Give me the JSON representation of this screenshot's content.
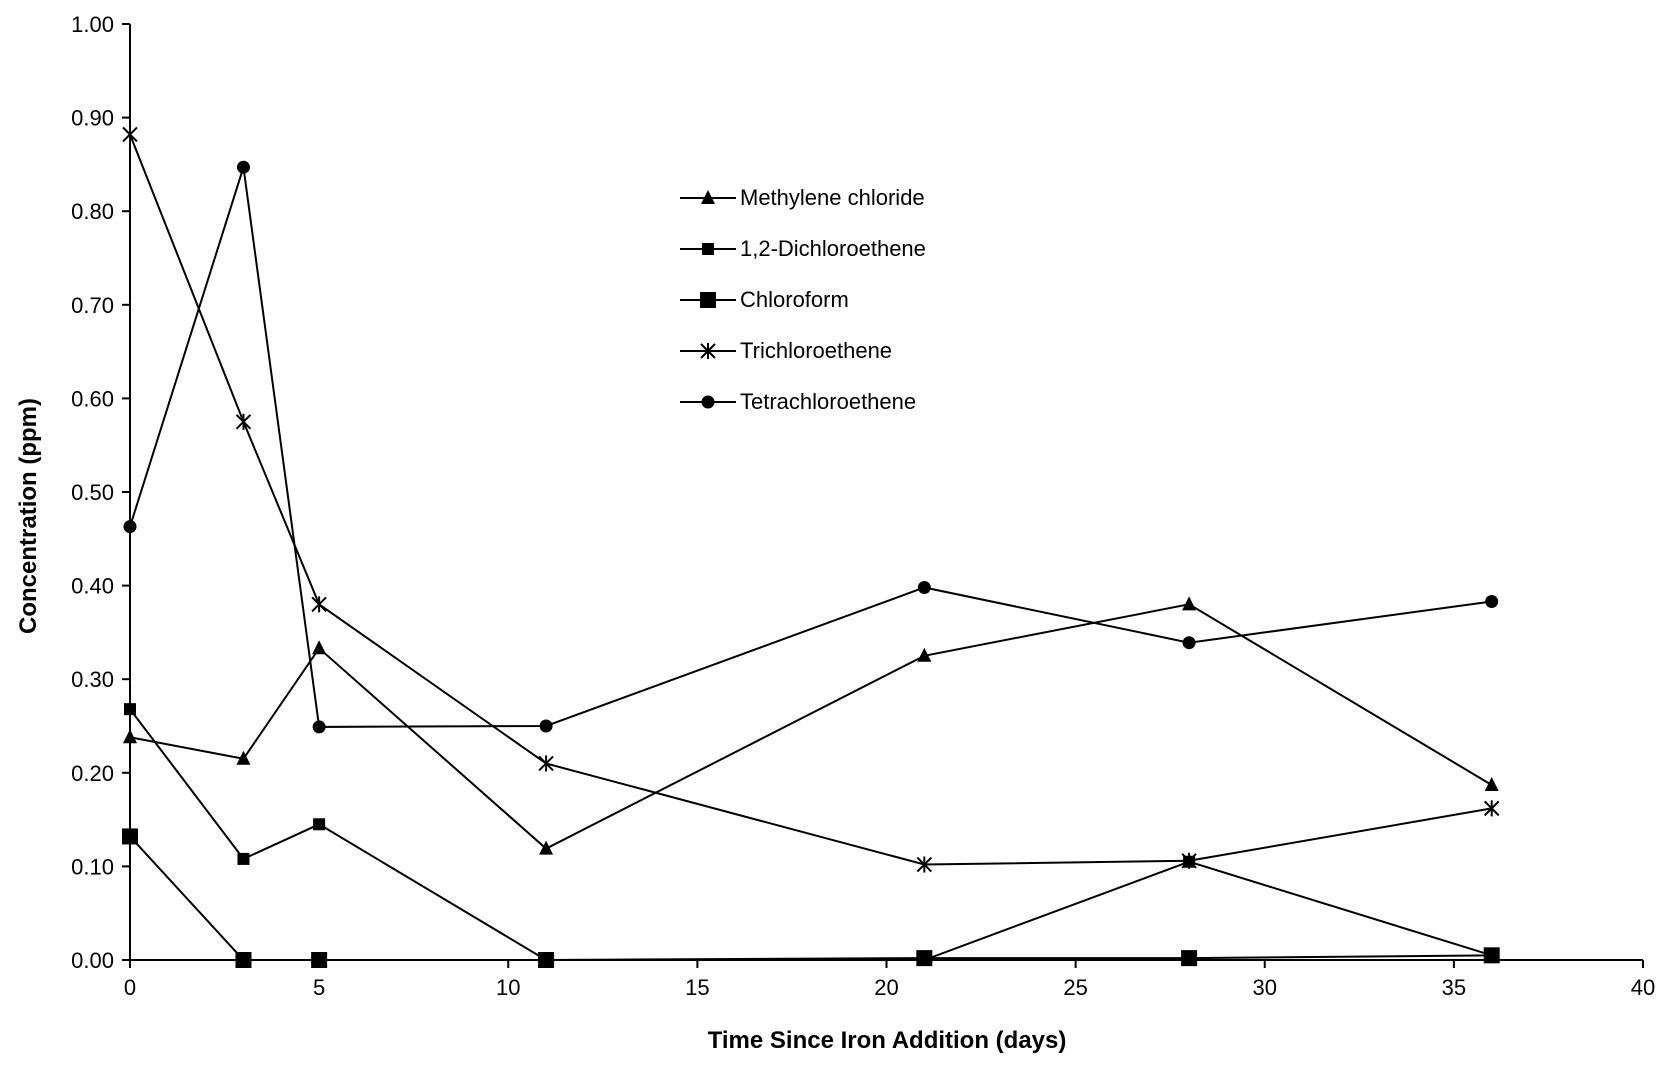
{
  "chart_data": {
    "type": "line",
    "xlabel": "Time Since Iron Addition (days)",
    "ylabel": "Concentration (ppm)",
    "xlim": [
      0,
      40
    ],
    "ylim": [
      0,
      1.0
    ],
    "x_ticks": [
      "0",
      "5",
      "10",
      "15",
      "20",
      "25",
      "30",
      "35",
      "40"
    ],
    "y_ticks": [
      "0.00",
      "0.10",
      "0.20",
      "0.30",
      "0.40",
      "0.50",
      "0.60",
      "0.70",
      "0.80",
      "0.90",
      "1.00"
    ],
    "grid": false,
    "legend_position": "top-center",
    "x": [
      0,
      3,
      5,
      11,
      21,
      28,
      36
    ],
    "series": [
      {
        "name": "Methylene chloride",
        "marker": "triangle",
        "color": "#000000",
        "values": [
          0.238,
          0.215,
          0.333,
          0.119,
          0.325,
          0.38,
          0.187
        ]
      },
      {
        "name": "1,2-Dichloroethene",
        "marker": "small-square",
        "color": "#000000",
        "values": [
          0.268,
          0.108,
          0.145,
          0.0,
          0.0,
          0.105,
          0.005
        ]
      },
      {
        "name": "Chloroform",
        "marker": "large-square",
        "color": "#000000",
        "values": [
          0.132,
          0.0,
          0.0,
          0.0,
          0.002,
          0.002,
          0.005
        ]
      },
      {
        "name": "Trichloroethene",
        "marker": "star",
        "color": "#000000",
        "values": [
          0.882,
          0.575,
          0.38,
          0.21,
          0.102,
          0.106,
          0.162
        ]
      },
      {
        "name": "Tetrachloroethene",
        "marker": "circle",
        "color": "#000000",
        "values": [
          0.463,
          0.847,
          0.249,
          0.25,
          0.398,
          0.339,
          0.383
        ]
      }
    ]
  }
}
